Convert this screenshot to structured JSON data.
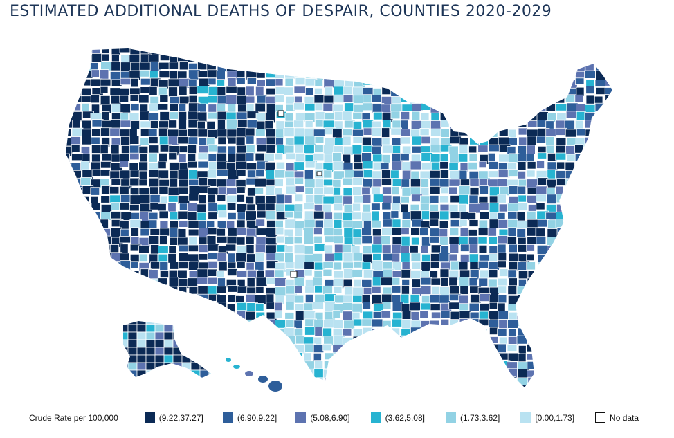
{
  "title": "ESTIMATED ADDITIONAL DEATHS OF DESPAIR, COUNTIES 2020-2029",
  "legend": {
    "title": "Crude Rate per 100,000",
    "items": [
      {
        "label": "(9.22,37.27]",
        "color": "#0b2a55"
      },
      {
        "label": "(6.90,9.22]",
        "color": "#2e5e9a"
      },
      {
        "label": "(5.08,6.90]",
        "color": "#5d73b0"
      },
      {
        "label": "(3.62,5.08]",
        "color": "#27b3d1"
      },
      {
        "label": "(1.73,3.62]",
        "color": "#92d2e4"
      },
      {
        "label": "[0.00,1.73]",
        "color": "#b9e2f1"
      },
      {
        "label": "No data",
        "color": "#ffffff"
      }
    ]
  },
  "colors": {
    "county_border": "#ffffff",
    "no_data_border": "#111111",
    "title": "#1d3557"
  }
}
